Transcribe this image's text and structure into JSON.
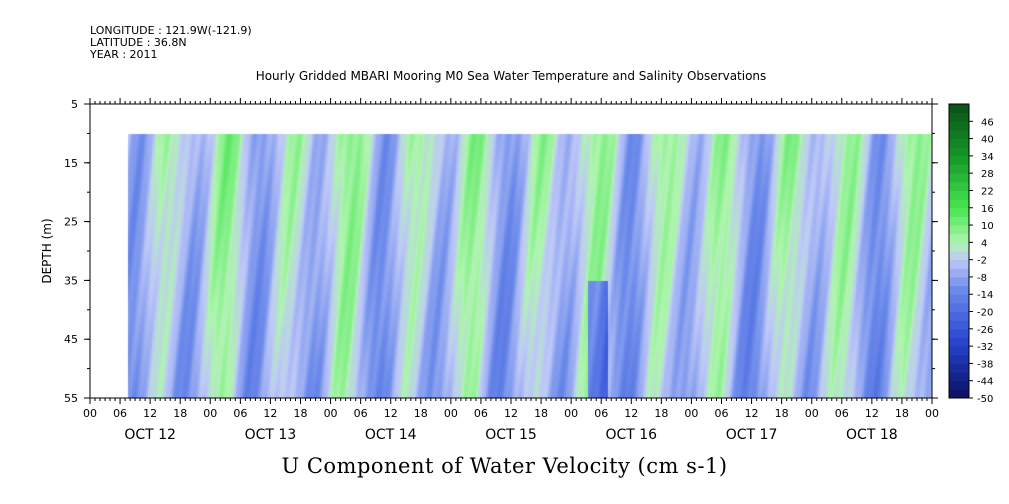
{
  "header": {
    "longitude": "LONGITUDE : 121.9W(-121.9)",
    "latitude": "LATITUDE : 36.8N",
    "year": "YEAR : 2011"
  },
  "chart_data": {
    "type": "heatmap",
    "title": "Hourly Gridded MBARI Mooring M0 Sea Water Temperature and Salinity Observations",
    "xlabel": "U Component of Water Velocity (cm s-1)",
    "ylabel": "DEPTH (m)",
    "y_axis": {
      "range": [
        5,
        55
      ],
      "inverted": true,
      "ticks": [
        5,
        15,
        25,
        35,
        45,
        55
      ],
      "data_range": [
        10,
        55
      ]
    },
    "x_axis": {
      "hour_labels": [
        "00",
        "06",
        "12",
        "18",
        "00",
        "06",
        "12",
        "18",
        "00",
        "06",
        "12",
        "18",
        "00",
        "06",
        "12",
        "18",
        "00",
        "06",
        "12",
        "18",
        "00",
        "06",
        "12",
        "18",
        "00",
        "06",
        "12",
        "18",
        "00"
      ],
      "day_labels": [
        "OCT 12",
        "OCT 13",
        "OCT 14",
        "OCT 15",
        "OCT 16",
        "OCT 17",
        "OCT 18"
      ],
      "range_hours": [
        0,
        168
      ],
      "data_start_hour": 7.5
    },
    "colorbar": {
      "levels": [
        "46",
        "40",
        "34",
        "28",
        "22",
        "16",
        "10",
        "4",
        "-2",
        "-8",
        "-14",
        "-20",
        "-26",
        "-32",
        "-38",
        "-44",
        "-50"
      ],
      "range": [
        -50,
        52
      ],
      "colors": {
        "low": "#0a1060",
        "mid_low": "#8aa0f0",
        "zero": "#c8d0f8",
        "mid_high": "#60f070",
        "high": "#0a5a1a"
      }
    },
    "grid": false
  }
}
